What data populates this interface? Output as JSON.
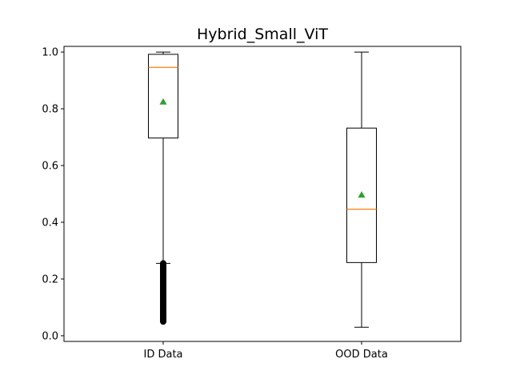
{
  "chart_data": {
    "type": "box",
    "title": "Hybrid_Small_ViT",
    "xlabel": "",
    "ylabel": "",
    "ylim": [
      -0.02,
      1.02
    ],
    "yticks": [
      0.0,
      0.2,
      0.4,
      0.6,
      0.8,
      1.0
    ],
    "ytick_labels": [
      "0.0",
      "0.2",
      "0.4",
      "0.6",
      "0.8",
      "1.0"
    ],
    "grid": false,
    "categories": [
      "ID Data",
      "OOD Data"
    ],
    "boxes": [
      {
        "category": "ID Data",
        "whisker_low": 0.255,
        "q1": 0.697,
        "median": 0.946,
        "q3": 0.992,
        "whisker_high": 1.0,
        "mean": 0.825,
        "outliers_range": [
          0.05,
          0.255
        ]
      },
      {
        "category": "OOD Data",
        "whisker_low": 0.03,
        "q1": 0.258,
        "median": 0.446,
        "q3": 0.732,
        "whisker_high": 1.0,
        "mean": 0.497,
        "outliers_range": null
      }
    ],
    "colors": {
      "box": "#000000",
      "median": "#ff7f0e",
      "mean": "#2ca02c",
      "outlier": "#000000"
    }
  }
}
